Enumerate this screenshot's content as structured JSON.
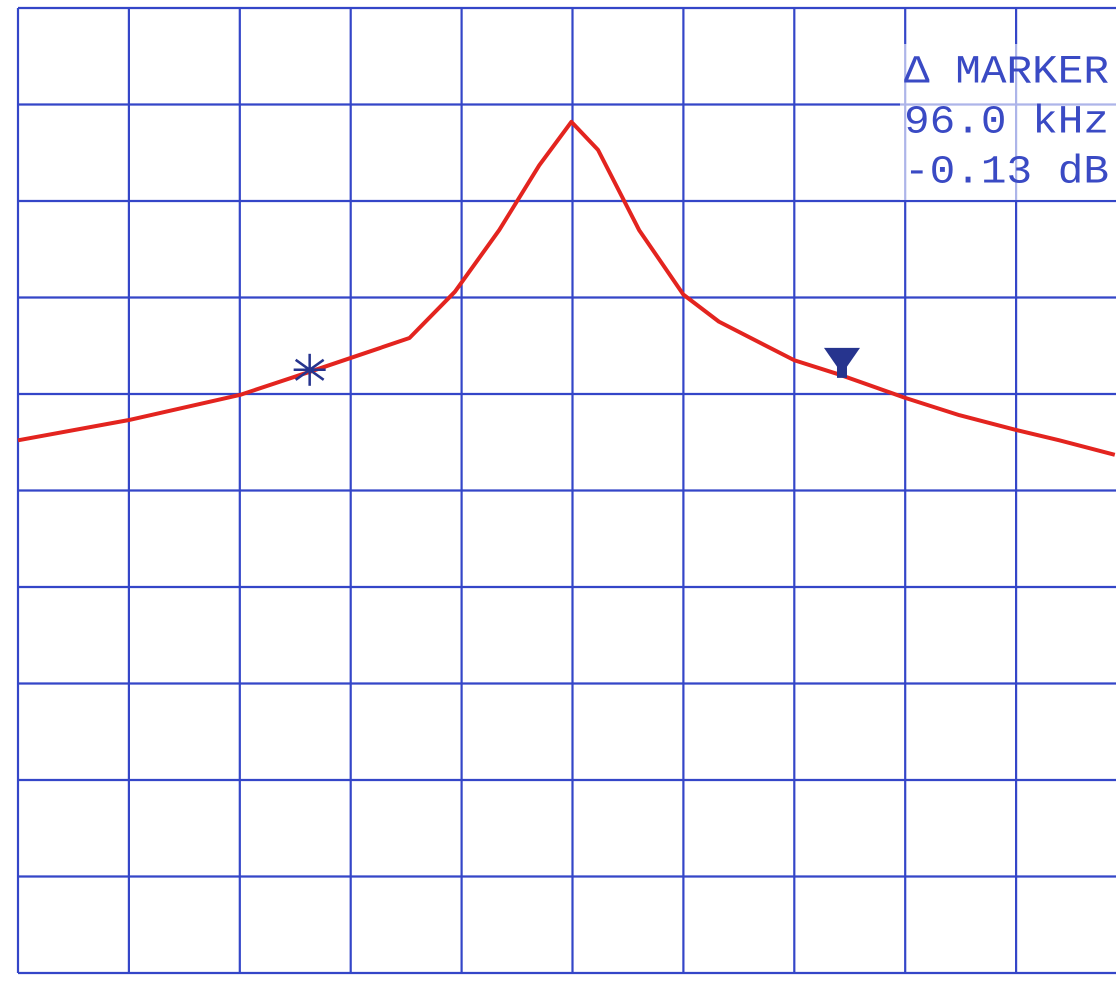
{
  "chart_data": {
    "type": "line",
    "x": [
      0,
      1.0,
      2.0,
      2.63,
      2.99,
      3.53,
      3.94,
      4.34,
      4.7,
      4.99,
      5.23,
      5.6,
      6.0,
      6.32,
      7.0,
      7.41,
      8.0,
      8.49,
      8.99,
      9.39,
      9.89
    ],
    "series": [
      {
        "color": "#e3241f",
        "values": [
          5.52,
          5.73,
          5.99,
          6.23,
          6.37,
          6.58,
          7.06,
          7.7,
          8.37,
          8.82,
          8.53,
          7.7,
          7.03,
          6.75,
          6.35,
          6.2,
          5.96,
          5.78,
          5.63,
          5.52,
          5.37
        ]
      }
    ],
    "xlim": [
      0,
      10
    ],
    "ylim": [
      0,
      10
    ],
    "xticks": [
      0,
      1,
      2,
      3,
      4,
      5,
      6,
      7,
      8,
      9,
      10
    ],
    "yticks": [
      0,
      1,
      2,
      3,
      4,
      5,
      6,
      7,
      8,
      9,
      10
    ],
    "tick_labels": false,
    "grid": true,
    "grid_color": "#3446c8",
    "markers": [
      {
        "symbol": "star",
        "x": 2.63,
        "y": 6.23,
        "color": "#26348e"
      },
      {
        "symbol": "triangle",
        "x": 7.43,
        "y": 6.25,
        "color": "#26348e"
      }
    ],
    "annotation": {
      "lines": [
        "Δ MARKER",
        "96.0 kHz",
        "-0.13 dB"
      ],
      "color": "#3a4ac4"
    }
  }
}
